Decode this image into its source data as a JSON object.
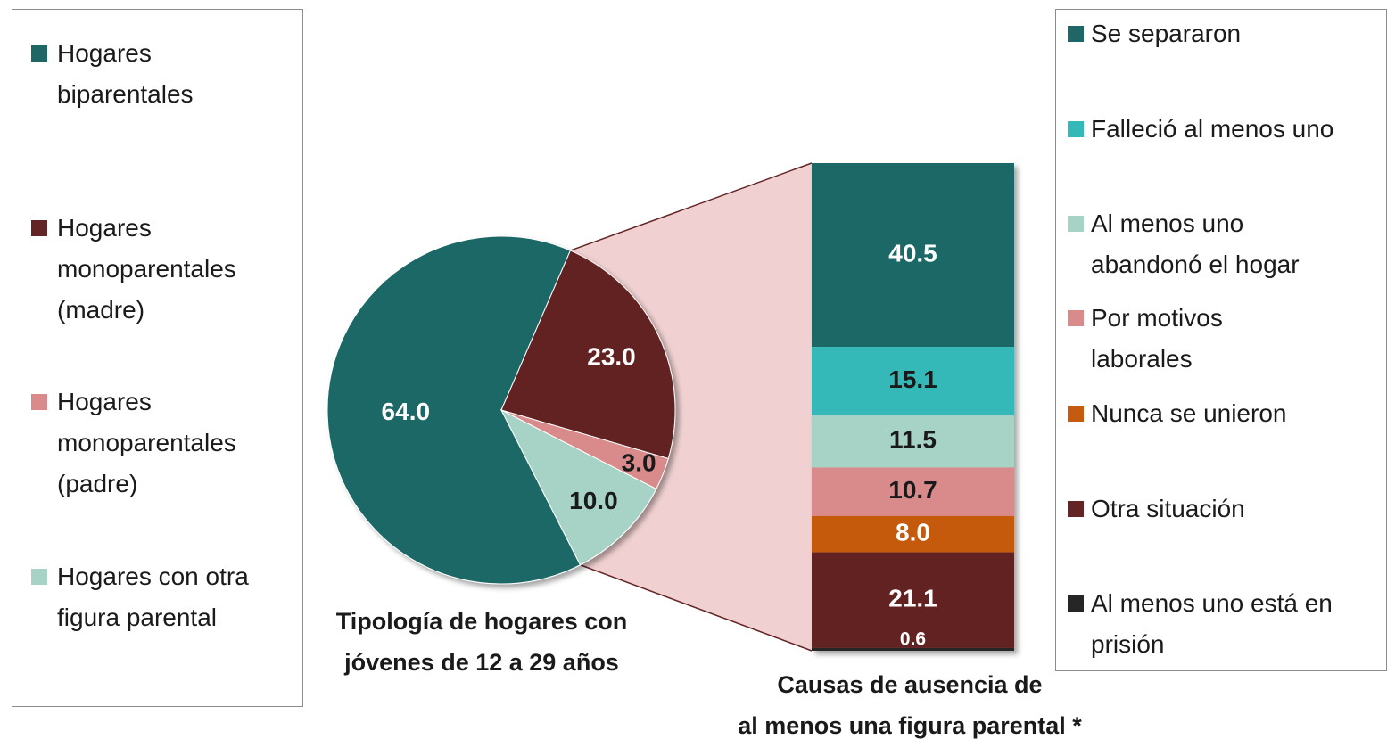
{
  "chart_data": [
    {
      "type": "pie",
      "title": "Tipología de hogares con\njóvenes de 12 a 29 años",
      "categories": [
        "Hogares\nbiparentales",
        "Hogares\nmonoparentales\n(madre)",
        "Hogares\nmonoparentales\n(padre)",
        "Hogares con otra\nfigura parental"
      ],
      "values": [
        64.0,
        23.0,
        3.0,
        10.0
      ],
      "value_labels": [
        "64.0",
        "23.0",
        "3.0",
        "10.0"
      ],
      "colors": [
        "#1e6766",
        "#622424",
        "#d98a8a",
        "#a6d3c5"
      ],
      "legend": "left"
    },
    {
      "type": "stacked_bar",
      "title": "Causas de ausencia de\nal menos una figura parental *",
      "series": [
        {
          "name": "Se separaron",
          "color": "#1e6766",
          "values": [
            40.5
          ],
          "value_labels": [
            "40.5"
          ]
        },
        {
          "name": "Falleció al menos uno",
          "color": "#35b8b8",
          "values": [
            15.1
          ],
          "value_labels": [
            "15.1"
          ]
        },
        {
          "name": "Al menos uno\nabandonó el hogar",
          "color": "#a6d3c5",
          "values": [
            11.5
          ],
          "value_labels": [
            "11.5"
          ]
        },
        {
          "name": "Por motivos\nlaborales",
          "color": "#d98a8a",
          "values": [
            10.7
          ],
          "value_labels": [
            "10.7"
          ]
        },
        {
          "name": "Nunca se unieron",
          "color": "#c55a11",
          "values": [
            8.0
          ],
          "value_labels": [
            "8.0"
          ]
        },
        {
          "name": "Otra situación",
          "color": "#622424",
          "values": [
            21.1
          ],
          "value_labels": [
            "21.1"
          ]
        },
        {
          "name": "Al menos uno está en\nprisión",
          "color": "#262626",
          "values": [
            0.6
          ],
          "value_labels": [
            "0.6"
          ]
        }
      ],
      "legend": "right"
    }
  ]
}
